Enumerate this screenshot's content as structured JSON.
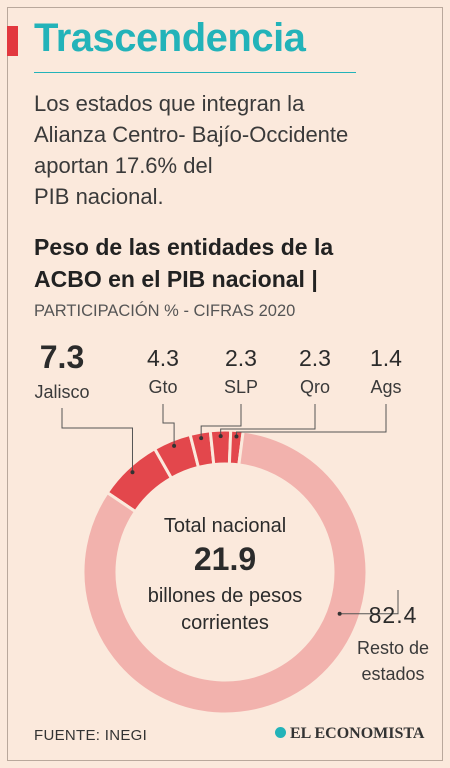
{
  "header": {
    "title": "Trascendencia",
    "intro_lines": [
      "Los estados que integran la",
      "Alianza Centro- Bajío-Occidente",
      "aportan 17.6% del",
      "PIB nacional."
    ]
  },
  "chart_data": {
    "type": "pie",
    "title_lines": [
      "Peso de las entidades de la",
      "ACBO en el PIB nacional |"
    ],
    "subtitle": "PARTICIPACIÓN % - CIFRAS 2020",
    "slices": [
      {
        "label": "Jalisco",
        "value": 7.3,
        "display": "7.3"
      },
      {
        "label": "Gto",
        "value": 4.3,
        "display": "4.3"
      },
      {
        "label": "SLP",
        "value": 2.3,
        "display": "2.3"
      },
      {
        "label": "Qro",
        "value": 2.3,
        "display": "2.3"
      },
      {
        "label": "Ags",
        "value": 1.4,
        "display": "1.4"
      },
      {
        "label_lines": [
          "Resto de",
          "estados"
        ],
        "value": 82.4,
        "display": "82.4"
      }
    ],
    "center": {
      "line1": "Total nacional",
      "value": "21.9",
      "line3": "billones de pesos",
      "line4": "corrientes"
    },
    "colors": {
      "highlight": "#e3474c",
      "rest": "#f2b2ad",
      "leader": "#555555"
    }
  },
  "footer": {
    "source": "FUENTE: INEGI",
    "brand": "EL ECONOMISTA"
  }
}
